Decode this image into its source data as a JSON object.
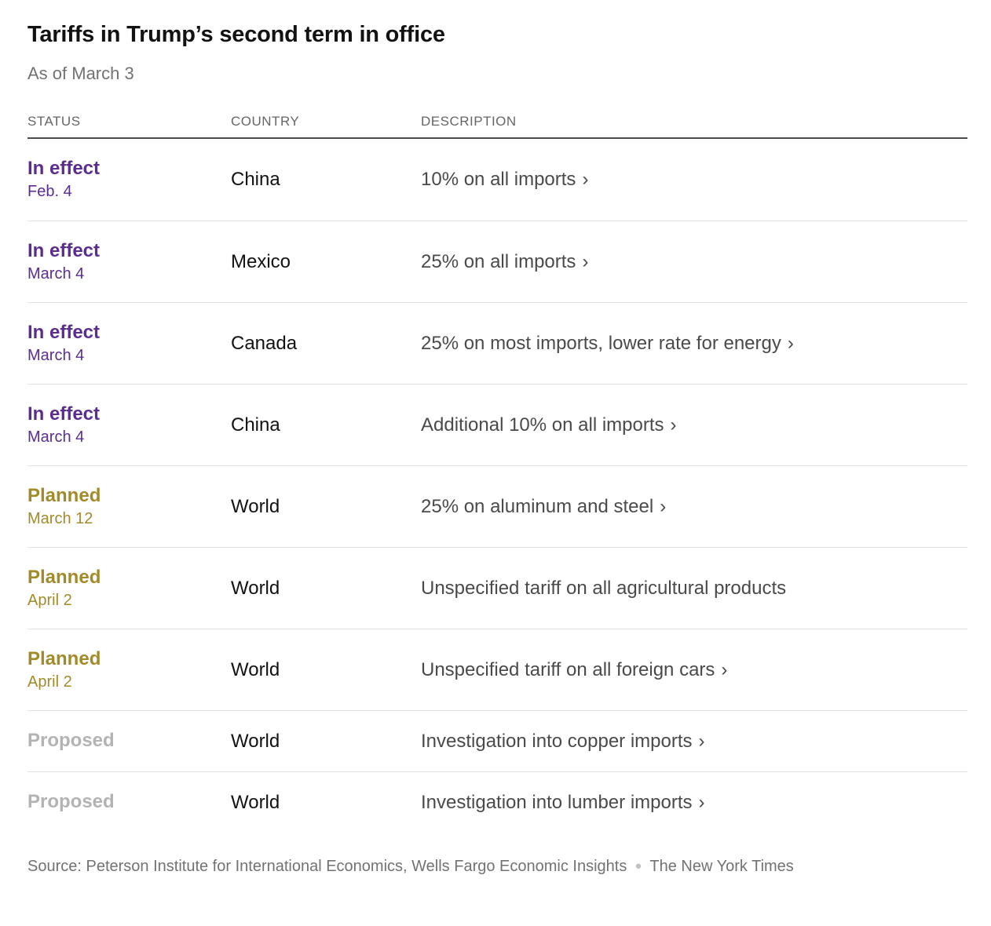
{
  "chart_data": {
    "type": "table",
    "title": "Tariffs in Trump’s second term in office",
    "subtitle": "As of March 3",
    "columns": [
      "STATUS",
      "COUNTRY",
      "DESCRIPTION"
    ],
    "rows": [
      {
        "status": "In effect",
        "date": "Feb. 4",
        "country": "China",
        "description": "10% on all imports",
        "arrow": "›"
      },
      {
        "status": "In effect",
        "date": "March 4",
        "country": "Mexico",
        "description": "25% on all imports",
        "arrow": "›"
      },
      {
        "status": "In effect",
        "date": "March 4",
        "country": "Canada",
        "description": "25% on most imports, lower rate for energy",
        "arrow": "›"
      },
      {
        "status": "In effect",
        "date": "March 4",
        "country": "China",
        "description": "Additional 10% on all imports",
        "arrow": "›"
      },
      {
        "status": "Planned",
        "date": "March 12",
        "country": "World",
        "description": "25% on aluminum and steel",
        "arrow": "›"
      },
      {
        "status": "Planned",
        "date": "April 2",
        "country": "World",
        "description": "Unspecified tariff on all agricultural products"
      },
      {
        "status": "Planned",
        "date": "April 2",
        "country": "World",
        "description": "Unspecified tariff on all foreign cars",
        "arrow": "›"
      },
      {
        "status": "Proposed",
        "country": "World",
        "description": "Investigation into copper imports",
        "arrow": "›"
      },
      {
        "status": "Proposed",
        "country": "World",
        "description": "Investigation into lumber imports",
        "arrow": "›"
      }
    ],
    "legend": {
      "in_effect_label": "In effect",
      "planned_label": "Planned",
      "proposed_label": "Proposed"
    }
  },
  "footer": {
    "source": "Source: Peterson Institute for International Economics, Wells Fargo Economic Insights",
    "separator": "●",
    "credit": "The New York Times"
  },
  "colors": {
    "status_in_effect": "#5b2d90",
    "status_planned": "#a38b2a",
    "status_proposed": "#b3b3b3",
    "title_text": "#121212",
    "muted_text": "#727272",
    "description_text": "#4a4a4a",
    "row_divider": "#e2e2e2",
    "header_rule": "#4a4a4a"
  }
}
